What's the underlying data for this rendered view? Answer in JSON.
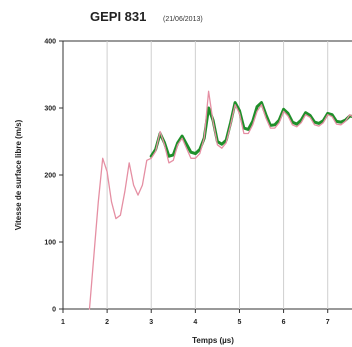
{
  "chart_data": {
    "type": "line",
    "title": "GEPI 831",
    "subtitle": "(21/06/2013)",
    "xlabel": "Temps (µs)",
    "ylabel": "Vitesse de surface libre (m/s)",
    "xlim": [
      1,
      7.8
    ],
    "ylim": [
      0,
      400
    ],
    "xticks": [
      1,
      2,
      3,
      4,
      5,
      6,
      7
    ],
    "yticks": [
      0,
      100,
      200,
      300,
      400
    ],
    "grid": "vertical",
    "series": [
      {
        "color": "#1f8f2a",
        "x": [
          3.0,
          3.1,
          3.2,
          3.3,
          3.4,
          3.5,
          3.6,
          3.7,
          3.8,
          3.9,
          4.0,
          4.1,
          4.2,
          4.3,
          4.4,
          4.5,
          4.6,
          4.7,
          4.8,
          4.9,
          5.0,
          5.1,
          5.2,
          5.3,
          5.4,
          5.5,
          5.6,
          5.7,
          5.8,
          5.9,
          6.0,
          6.1,
          6.2,
          6.3,
          6.4,
          6.5,
          6.6,
          6.7,
          6.8,
          6.9,
          7.0,
          7.1,
          7.2,
          7.3,
          7.4,
          7.5,
          7.6,
          7.7,
          7.8
        ],
        "y": [
          228,
          238,
          262,
          248,
          228,
          230,
          248,
          258,
          246,
          234,
          232,
          238,
          255,
          300,
          282,
          250,
          246,
          252,
          278,
          308,
          296,
          270,
          268,
          280,
          302,
          308,
          290,
          274,
          275,
          282,
          298,
          292,
          279,
          276,
          282,
          293,
          289,
          279,
          277,
          281,
          292,
          290,
          280,
          279,
          282,
          288,
          287,
          280,
          280
        ]
      },
      {
        "color": "#e58fa3",
        "x": [
          1.6,
          1.7,
          1.8,
          1.9,
          2.0,
          2.1,
          2.2,
          2.3,
          2.4,
          2.5,
          2.6,
          2.7,
          2.8,
          2.9,
          3.0,
          3.1,
          3.2,
          3.3,
          3.4,
          3.5,
          3.6,
          3.7,
          3.8,
          3.9,
          4.0,
          4.1,
          4.2,
          4.3,
          4.4,
          4.5,
          4.6,
          4.7,
          4.8,
          4.9,
          5.0,
          5.1,
          5.2,
          5.3,
          5.4,
          5.5,
          5.6,
          5.7,
          5.8,
          5.9,
          6.0,
          6.1,
          6.2,
          6.3,
          6.4,
          6.5,
          6.6,
          6.7,
          6.8,
          6.9,
          7.0,
          7.1,
          7.2,
          7.3,
          7.4,
          7.5,
          7.6,
          7.7,
          7.8
        ],
        "y": [
          0,
          80,
          160,
          225,
          205,
          160,
          135,
          140,
          175,
          218,
          185,
          170,
          185,
          222,
          225,
          235,
          265,
          245,
          218,
          222,
          245,
          255,
          240,
          225,
          225,
          232,
          255,
          325,
          280,
          245,
          240,
          248,
          275,
          305,
          292,
          262,
          262,
          275,
          295,
          305,
          285,
          270,
          270,
          278,
          295,
          288,
          275,
          272,
          278,
          290,
          286,
          275,
          273,
          278,
          290,
          287,
          276,
          275,
          280,
          290,
          285,
          276,
          278
        ]
      }
    ]
  }
}
